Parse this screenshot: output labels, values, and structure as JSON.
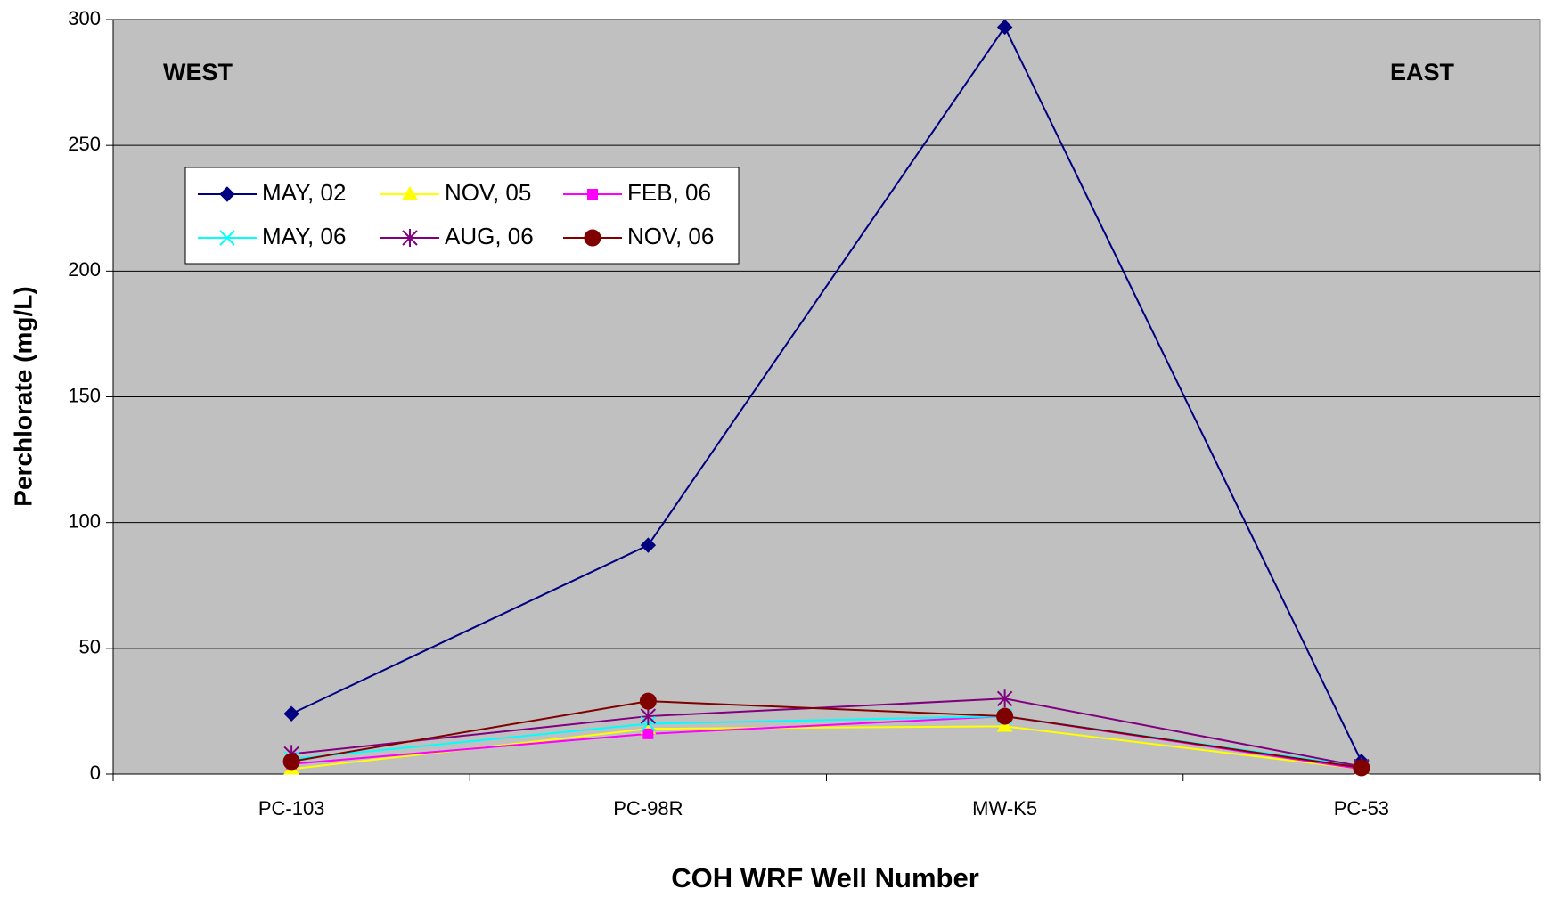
{
  "chart_data": {
    "type": "line",
    "x_label": "COH WRF Well Number",
    "y_label": "Perchlorate (mg/L)",
    "annotations": [
      "WEST",
      "EAST"
    ],
    "categories": [
      "PC-103",
      "PC-98R",
      "MW-K5",
      "PC-53"
    ],
    "ylim": [
      0,
      300
    ],
    "yticks": [
      0,
      50,
      100,
      150,
      200,
      250,
      300
    ],
    "grid": true,
    "legend": "upper left",
    "series": [
      {
        "name": "MAY, 02",
        "color": "#000080",
        "marker": "diamond",
        "values": [
          24,
          91,
          297,
          5
        ]
      },
      {
        "name": "NOV, 05",
        "color": "#ffff00",
        "marker": "triangle",
        "values": [
          2,
          18,
          19,
          2
        ]
      },
      {
        "name": "FEB, 06",
        "color": "#ff00ff",
        "marker": "square",
        "values": [
          4,
          16,
          23,
          2
        ]
      },
      {
        "name": "MAY, 06",
        "color": "#00ffff",
        "marker": "x",
        "values": [
          6,
          20,
          23,
          3
        ]
      },
      {
        "name": "AUG, 06",
        "color": "#800080",
        "marker": "star",
        "values": [
          8,
          23,
          30,
          3
        ]
      },
      {
        "name": "NOV, 06",
        "color": "#800000",
        "marker": "circle",
        "values": [
          5,
          29,
          23,
          2.5
        ]
      }
    ]
  }
}
